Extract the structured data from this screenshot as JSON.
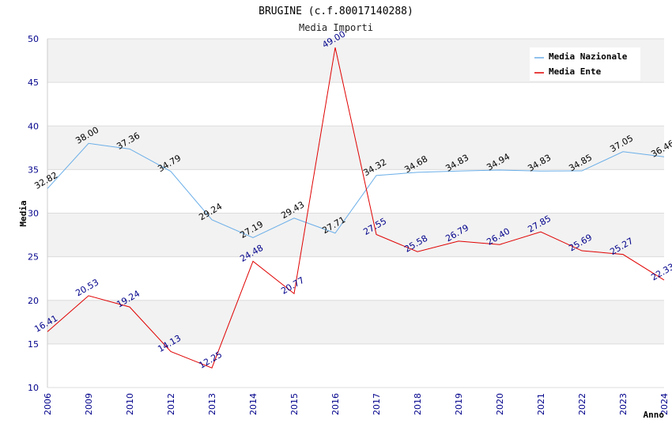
{
  "chart_data": {
    "type": "line",
    "title": "BRUGINE (c.f.80017140288)",
    "subtitle": "Media Importi",
    "xlabel": "Anno",
    "ylabel": "Media",
    "ylim": [
      10,
      50
    ],
    "yticks": [
      "10",
      "15",
      "20",
      "25",
      "30",
      "35",
      "40",
      "45",
      "50"
    ],
    "grid": true,
    "legend_position": "top-right",
    "categories": [
      "2006",
      "2009",
      "2010",
      "2012",
      "2013",
      "2014",
      "2015",
      "2016",
      "2017",
      "2018",
      "2019",
      "2020",
      "2021",
      "2022",
      "2023",
      "2024"
    ],
    "series": [
      {
        "name": "Media Nazionale",
        "color": "#6aaee8",
        "label_color": "#000000",
        "values": [
          32.82,
          38.0,
          37.36,
          34.79,
          29.24,
          27.19,
          29.43,
          27.71,
          34.32,
          34.68,
          34.83,
          34.94,
          34.83,
          34.85,
          37.05,
          36.46
        ],
        "labels": [
          "32.82",
          "38.00",
          "37.36",
          "34.79",
          "29.24",
          "27.19",
          "29.43",
          "27.71",
          "34.32",
          "34.68",
          "34.83",
          "34.94",
          "34.83",
          "34.85",
          "37.05",
          "36.46"
        ]
      },
      {
        "name": "Media Ente",
        "color": "#e00000",
        "label_color": "#00008b",
        "values": [
          16.41,
          20.53,
          19.24,
          14.13,
          12.25,
          24.48,
          20.77,
          49.0,
          27.55,
          25.58,
          26.79,
          26.4,
          27.85,
          25.69,
          25.27,
          22.33
        ],
        "labels": [
          "16.41",
          "20.53",
          "19.24",
          "14.13",
          "12.25",
          "24.48",
          "20.77",
          "49.00",
          "27.55",
          "25.58",
          "26.79",
          "26.40",
          "27.85",
          "25.69",
          "25.27",
          "22.33"
        ]
      }
    ]
  }
}
